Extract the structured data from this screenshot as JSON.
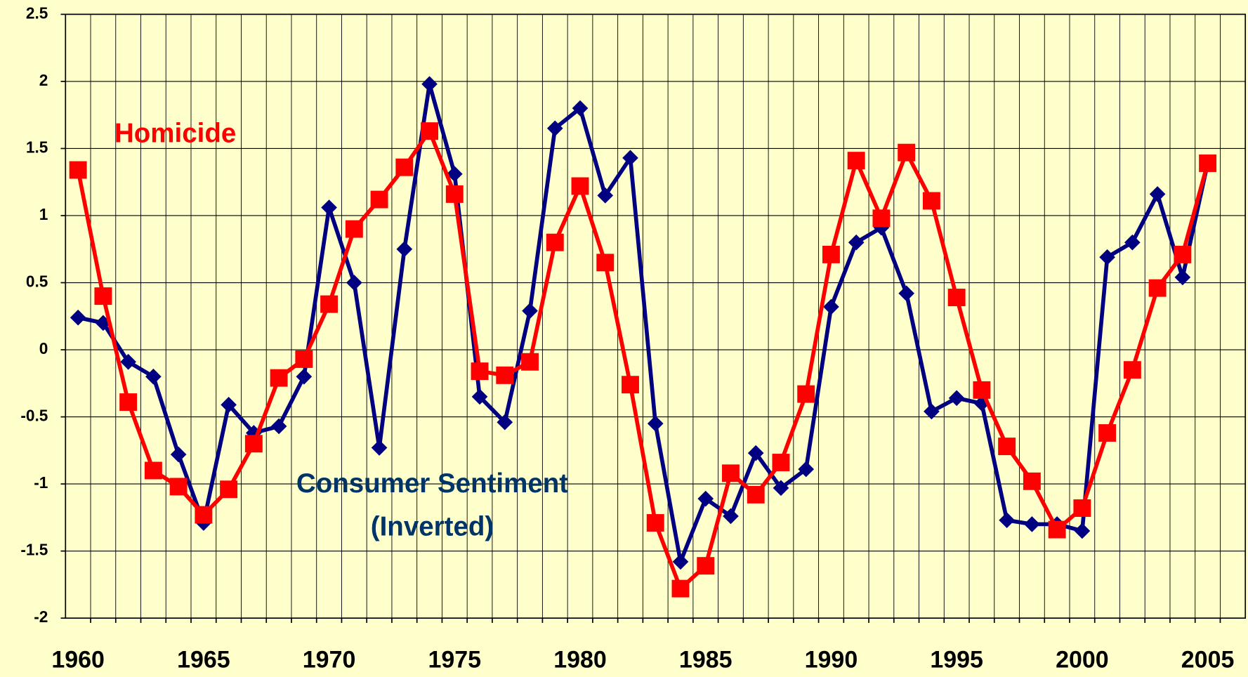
{
  "chart_data": {
    "type": "line",
    "categories": [
      "1960",
      null,
      null,
      null,
      null,
      "1965",
      null,
      null,
      null,
      null,
      "1970",
      null,
      null,
      null,
      null,
      "1975",
      null,
      null,
      null,
      null,
      "1980",
      null,
      null,
      null,
      null,
      "1985",
      null,
      null,
      null,
      null,
      "1990",
      null,
      null,
      null,
      null,
      "1995",
      null,
      null,
      null,
      null,
      "2000",
      null,
      null,
      null,
      null,
      "2005",
      null
    ],
    "series": [
      {
        "name": "Consumer Sentiment",
        "color": "#000080",
        "marker": "diamond",
        "values": [
          0.24,
          0.2,
          -0.09,
          -0.2,
          -0.78,
          -1.29,
          -0.41,
          -0.62,
          -0.57,
          -0.2,
          1.06,
          0.5,
          -0.73,
          0.75,
          1.98,
          1.31,
          -0.35,
          -0.54,
          0.29,
          1.65,
          1.8,
          1.15,
          1.43,
          -0.55,
          -1.58,
          -1.11,
          -1.24,
          -0.77,
          -1.03,
          -0.89,
          0.32,
          0.8,
          0.91,
          0.42,
          -0.46,
          -0.36,
          -0.4,
          -1.27,
          -1.3,
          -1.3,
          -1.35,
          0.69,
          0.8,
          1.16,
          0.54,
          1.39,
          null
        ]
      },
      {
        "name": "Homicide",
        "color": "#ff0000",
        "marker": "square",
        "values": [
          1.34,
          0.4,
          -0.39,
          -0.9,
          -1.02,
          -1.23,
          -1.04,
          -0.7,
          -0.21,
          -0.07,
          0.34,
          0.9,
          1.12,
          1.36,
          1.63,
          1.16,
          -0.16,
          -0.19,
          -0.09,
          0.8,
          1.22,
          0.65,
          -0.26,
          -1.29,
          -1.78,
          -1.61,
          -0.92,
          -1.08,
          -0.84,
          -0.33,
          0.71,
          1.41,
          0.98,
          1.47,
          1.11,
          0.39,
          -0.3,
          -0.72,
          -0.98,
          -1.34,
          -1.18,
          -0.62,
          -0.15,
          0.46,
          0.71,
          1.39,
          null
        ]
      }
    ],
    "annotations": [
      "(Inverted)"
    ],
    "ylim": [
      -2,
      2.5
    ],
    "yticks": [
      -2,
      -1.5,
      -1,
      -0.5,
      0,
      0.5,
      1,
      1.5,
      2,
      2.5
    ],
    "grid": true
  }
}
